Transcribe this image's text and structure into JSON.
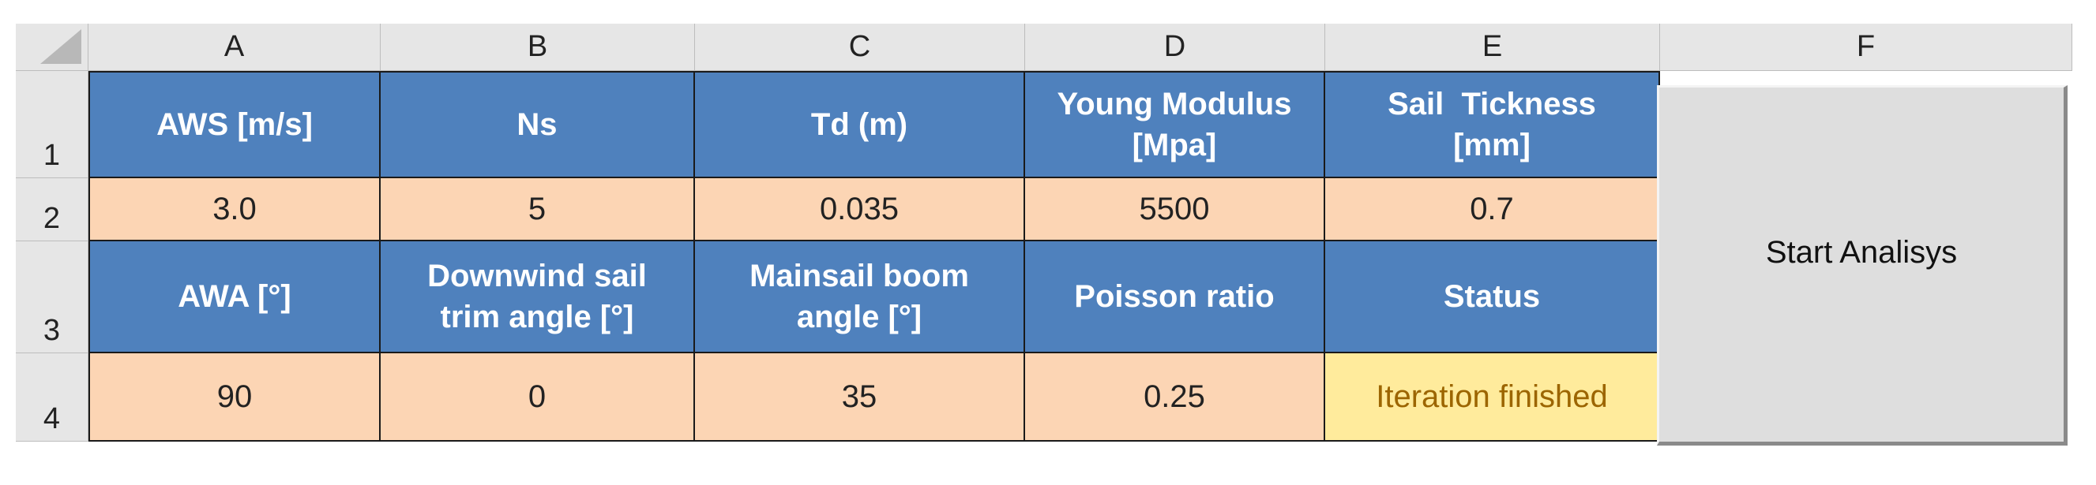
{
  "columns": [
    "A",
    "B",
    "C",
    "D",
    "E",
    "F"
  ],
  "rows": [
    "1",
    "2",
    "3",
    "4"
  ],
  "row1": {
    "aws": "AWS [m/s]",
    "ns": "Ns",
    "td": "Td (m)",
    "young_l1": "Young Modulus",
    "young_l2": "[Mpa]",
    "thick_l1": "Sail  Tickness",
    "thick_l2": "[mm]"
  },
  "row2": {
    "aws": "3.0",
    "ns": "5",
    "td": "0.035",
    "young": "5500",
    "thick": "0.7"
  },
  "row3": {
    "awa": "AWA [°]",
    "trim_l1": "Downwind sail",
    "trim_l2": "trim angle [°]",
    "boom_l1": "Mainsail boom",
    "boom_l2": "angle [°]",
    "poisson": "Poisson ratio",
    "status": "Status"
  },
  "row4": {
    "awa": "90",
    "trim": "0",
    "boom": "35",
    "poisson": "0.25",
    "status": "Iteration finished"
  },
  "button": {
    "label": "Start Analisys"
  },
  "colors": {
    "header_fill": "#4f81bd",
    "value_fill": "#fcd5b4",
    "status_fill": "#ffeb9c",
    "status_text": "#9c6500"
  }
}
